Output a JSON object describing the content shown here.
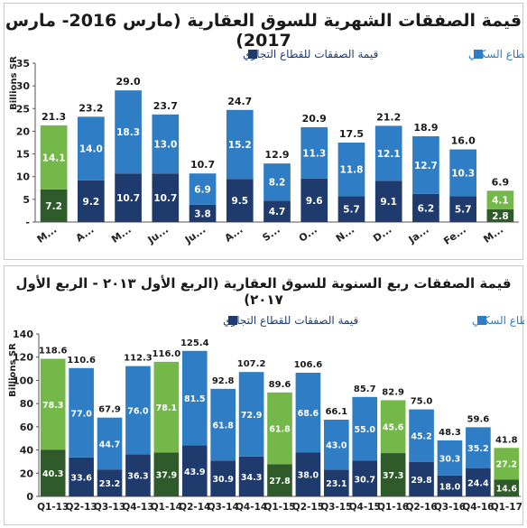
{
  "chart_data": [
    {
      "type": "bar",
      "stacked": true,
      "title": "قيمة الصفقات الشهرية للسوق العقارية (مارس 2016- مارس 2017)",
      "ylabel": "Billions SR",
      "ylim": [
        0,
        35
      ],
      "yticks": [
        "-",
        "5",
        "10",
        "15",
        "20",
        "25",
        "30",
        "35"
      ],
      "categories": [
        "M...",
        "A...",
        "M...",
        "Ju...",
        "Ju...",
        "A...",
        "S...",
        "O...",
        "N...",
        "D...",
        "Ja...",
        "Fe...",
        "M..."
      ],
      "series": [
        {
          "name": "قيمة الصفقات للقطاع التجاري",
          "values": [
            7.2,
            9.2,
            10.7,
            10.7,
            3.8,
            9.5,
            4.7,
            9.6,
            5.7,
            9.1,
            6.2,
            5.7,
            2.8
          ]
        },
        {
          "name": "قيمة الصفقات للقطاع السكني",
          "values": [
            14.1,
            14.0,
            18.3,
            13.0,
            6.9,
            15.2,
            8.2,
            11.3,
            11.8,
            12.1,
            12.7,
            10.3,
            4.1
          ]
        }
      ],
      "totals": [
        21.3,
        23.2,
        29.0,
        23.7,
        10.7,
        24.7,
        12.9,
        20.9,
        17.5,
        21.2,
        18.9,
        16.0,
        6.9
      ],
      "highlight": [
        0,
        12
      ],
      "legend": "top",
      "grid": false
    },
    {
      "type": "bar",
      "stacked": true,
      "title": "قيمة الصفقات ربع السنوية للسوق العقارية (الربع الأول ٢٠١٣ - الربع الأول ٢٠١٧)",
      "ylabel": "Billions SR",
      "ylim": [
        0,
        140
      ],
      "yticks": [
        "0",
        "20",
        "40",
        "60",
        "80",
        "100",
        "120",
        "140"
      ],
      "categories": [
        "Q1-13",
        "Q2-13",
        "Q3-13",
        "Q4-13",
        "Q1-14",
        "Q2-14",
        "Q3-14",
        "Q4-14",
        "Q1-15",
        "Q2-15",
        "Q3-15",
        "Q4-15",
        "Q1-16",
        "Q2-16",
        "Q3-16",
        "Q4-16",
        "Q1-17"
      ],
      "series": [
        {
          "name": "قيمة الصفقات للقطاع التجاري",
          "values": [
            40.3,
            33.6,
            23.2,
            36.3,
            37.9,
            43.9,
            30.9,
            34.3,
            27.8,
            38.0,
            23.1,
            30.7,
            37.3,
            29.8,
            18.0,
            24.4,
            14.6
          ]
        },
        {
          "name": "قيمة الصفقات للقطاع السكني",
          "values": [
            78.3,
            77.0,
            44.7,
            76.0,
            78.1,
            81.5,
            61.8,
            72.9,
            61.8,
            68.6,
            43.0,
            55.0,
            45.6,
            45.2,
            30.3,
            35.2,
            27.2
          ]
        }
      ],
      "totals": [
        118.6,
        110.6,
        67.9,
        112.3,
        116.0,
        125.4,
        92.8,
        107.2,
        89.6,
        106.6,
        66.1,
        85.7,
        82.9,
        75.0,
        48.3,
        59.6,
        41.8
      ],
      "highlight": [
        0,
        4,
        8,
        12,
        16
      ],
      "legend": "top",
      "grid": false
    }
  ],
  "colors": {
    "commercial": "#1f3b6e",
    "residential": "#2f7dc4",
    "commercial_highlight": "#2f5a2a",
    "residential_highlight": "#74b84a",
    "legend_commercial_text": "#1f3b6e",
    "legend_residential_text": "#2f7dc4"
  }
}
